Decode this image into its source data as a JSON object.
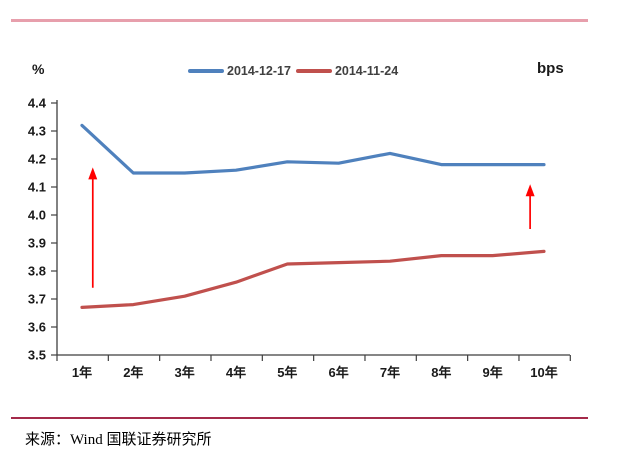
{
  "page": {
    "top_rule_color": "#E79FAC",
    "bottom_rule_color": "#A42A4A"
  },
  "header": {
    "left_unit": "%",
    "right_unit": "bps"
  },
  "chart_data": {
    "type": "line",
    "title": "",
    "categories": [
      "1年",
      "2年",
      "3年",
      "4年",
      "5年",
      "6年",
      "7年",
      "8年",
      "9年",
      "10年"
    ],
    "series": [
      {
        "name": "2014-12-17",
        "color": "#4F81BD",
        "values": [
          4.32,
          4.15,
          4.15,
          4.16,
          4.19,
          4.185,
          4.22,
          4.18,
          4.18,
          4.18
        ]
      },
      {
        "name": "2014-11-24",
        "color": "#C0504D",
        "values": [
          3.67,
          3.68,
          3.71,
          3.76,
          3.825,
          3.83,
          3.835,
          3.855,
          3.855,
          3.87
        ]
      }
    ],
    "xlabel": "",
    "ylabel": "",
    "y_unit": "%",
    "secondary_unit": "bps",
    "ylim": [
      3.5,
      4.4
    ],
    "ytick_step": 0.1,
    "grid": false,
    "legend_position": "top-center",
    "axis_color": "#3F3F3F",
    "tick_label_color": "#1a1a1a",
    "annotations": [
      {
        "type": "up-arrow",
        "near_category": "1年",
        "x_index": 1.21,
        "value_from": 3.74,
        "value_to": 4.17,
        "color": "#FF0000"
      },
      {
        "type": "up-arrow",
        "near_category": "10年",
        "x_index": 9.73,
        "value_from": 3.95,
        "value_to": 4.11,
        "color": "#FF0000"
      }
    ]
  },
  "footer": {
    "source": "来源：Wind 国联证券研究所"
  }
}
